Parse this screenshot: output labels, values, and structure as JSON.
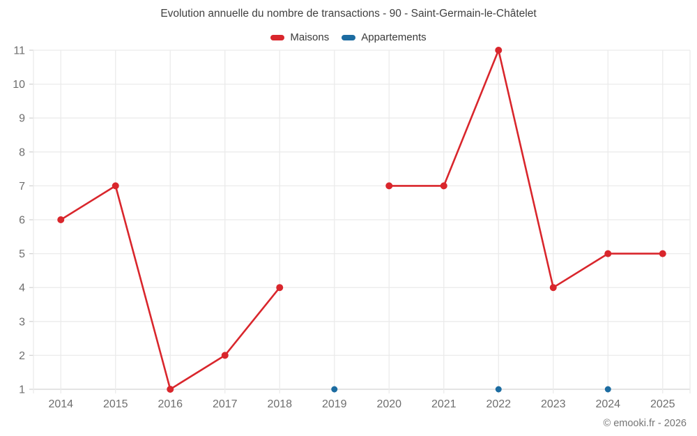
{
  "title": "Evolution annuelle du nombre de transactions - 90 - Saint-Germain-le-Châtelet",
  "footer": "© emooki.fr - 2026",
  "chart_data": {
    "type": "line",
    "title": "Evolution annuelle du nombre de transactions - 90 - Saint-Germain-le-Châtelet",
    "categories": [
      "2014",
      "2015",
      "2016",
      "2017",
      "2018",
      "2019",
      "2020",
      "2021",
      "2022",
      "2023",
      "2024",
      "2025"
    ],
    "series": [
      {
        "name": "Maisons",
        "color": "#d9262c",
        "values": [
          6,
          7,
          1,
          2,
          4,
          null,
          7,
          7,
          11,
          4,
          5,
          5
        ]
      },
      {
        "name": "Appartements",
        "color": "#1c6ca1",
        "values": [
          null,
          null,
          null,
          null,
          null,
          1,
          null,
          null,
          1,
          null,
          1,
          null
        ]
      }
    ],
    "xlabel": "",
    "ylabel": "",
    "ylim": [
      1,
      11
    ],
    "y_ticks": [
      1,
      2,
      3,
      4,
      5,
      6,
      7,
      8,
      9,
      10,
      11
    ],
    "grid": true,
    "legend_position": "top"
  },
  "colors": {
    "background": "#ffffff",
    "grid": "#ebebeb",
    "axis": "#d4d4d4",
    "tick_label": "#6e6e6e",
    "title_text": "#3f3f3f",
    "maisons": "#d9262c",
    "appartements": "#1c6ca1"
  }
}
